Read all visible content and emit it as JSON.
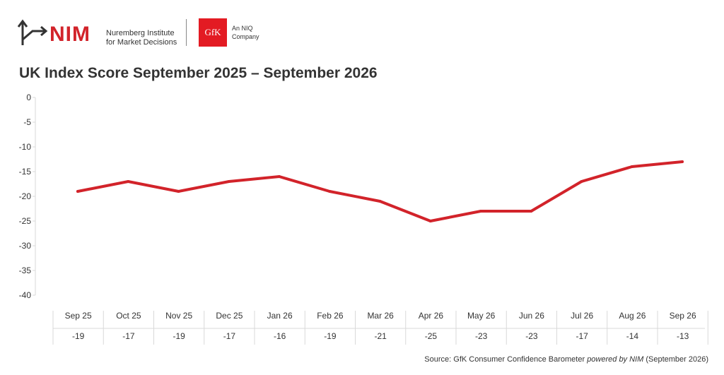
{
  "branding": {
    "nim_name": "NIM",
    "nim_subtitle_line1": "Nuremberg Institute",
    "nim_subtitle_line2": "for Market Decisions",
    "gfk_name": "GfK",
    "gfk_subtitle_line1": "An NIQ",
    "gfk_subtitle_line2": "Company",
    "brand_red": "#d2232a"
  },
  "source": {
    "prefix": "Source: GfK Consumer Confidence Barometer ",
    "emphasis": "powered by NIM",
    "suffix": " (September 2026)"
  },
  "chart_data": {
    "type": "line",
    "title": "UK Index Score September 2025 – September 2026",
    "categories": [
      "Sep 25",
      "Oct 25",
      "Nov 25",
      "Dec 25",
      "Jan 26",
      "Feb 26",
      "Mar 26",
      "Apr 26",
      "May 26",
      "Jun 26",
      "Jul 26",
      "Aug 26",
      "Sep 26"
    ],
    "series": [
      {
        "values": [
          -19,
          -17,
          -19,
          -17,
          -16,
          -19,
          -21,
          -25,
          -23,
          -23,
          -17,
          -14,
          -13
        ],
        "color": "#d2232a"
      }
    ],
    "value_labels": [
      "-19",
      "-17",
      "-19",
      "-17",
      "-16",
      "-19",
      "-21",
      "-25",
      "-23",
      "-23",
      "-17",
      "-14",
      "-13"
    ],
    "y_ticks": [
      "0",
      "-5",
      "-10",
      "-15",
      "-20",
      "-25",
      "-30",
      "-35",
      "-40"
    ],
    "ylim": [
      -40,
      0
    ],
    "grid": false,
    "legend": "none",
    "data_table_below": true
  }
}
